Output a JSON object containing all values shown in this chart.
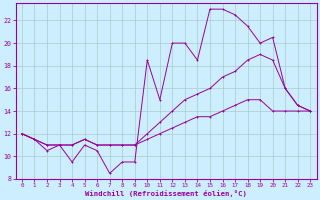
{
  "xlabel": "Windchill (Refroidissement éolien,°C)",
  "bg_color": "#cceeff",
  "line_color": "#990099",
  "grid_color": "#aacccc",
  "xlim": [
    -0.5,
    23.5
  ],
  "ylim": [
    8,
    23.5
  ],
  "xticks": [
    0,
    1,
    2,
    3,
    4,
    5,
    6,
    7,
    8,
    9,
    10,
    11,
    12,
    13,
    14,
    15,
    16,
    17,
    18,
    19,
    20,
    21,
    22,
    23
  ],
  "yticks": [
    8,
    10,
    12,
    14,
    16,
    18,
    20,
    22
  ],
  "series1_x": [
    0,
    1,
    2,
    3,
    4,
    5,
    6,
    7,
    8,
    9,
    10,
    11,
    12,
    13,
    14,
    15,
    16,
    17,
    18,
    19,
    20,
    21,
    22,
    23
  ],
  "series1_y": [
    12,
    11.5,
    10.5,
    11,
    9.5,
    11,
    10.5,
    8.5,
    9.5,
    9.5,
    18.5,
    15,
    20,
    20,
    18.5,
    23,
    23,
    22.5,
    21.5,
    20,
    20.5,
    16,
    14.5,
    14
  ],
  "series2_x": [
    0,
    1,
    2,
    3,
    4,
    5,
    6,
    7,
    8,
    9,
    10,
    11,
    12,
    13,
    14,
    15,
    16,
    17,
    18,
    19,
    20,
    21,
    22,
    23
  ],
  "series2_y": [
    12,
    11.5,
    11,
    11,
    11,
    11.5,
    11,
    11,
    11,
    11,
    12,
    13,
    14,
    15,
    15.5,
    16,
    17,
    17.5,
    18.5,
    19,
    18.5,
    16,
    14.5,
    14
  ],
  "series3_x": [
    0,
    1,
    2,
    3,
    4,
    5,
    6,
    7,
    8,
    9,
    10,
    11,
    12,
    13,
    14,
    15,
    16,
    17,
    18,
    19,
    20,
    21,
    22,
    23
  ],
  "series3_y": [
    12,
    11.5,
    11,
    11,
    11,
    11.5,
    11,
    11,
    11,
    11,
    11.5,
    12,
    12.5,
    13,
    13.5,
    13.5,
    14,
    14.5,
    15,
    15,
    14,
    14,
    14,
    14
  ]
}
